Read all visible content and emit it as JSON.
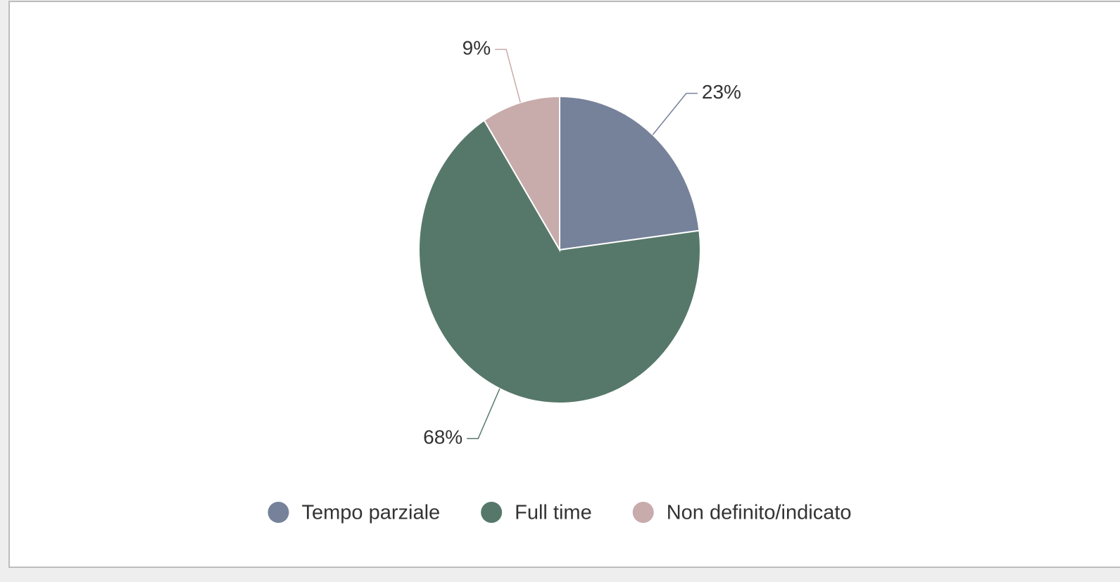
{
  "chart_data": {
    "type": "pie",
    "categories": [
      "Tempo parziale",
      "Full time",
      "Non definito/indicato"
    ],
    "values": [
      23,
      68,
      9
    ],
    "value_labels": [
      "23%",
      "68%",
      "9%"
    ],
    "colors": [
      "#76829a",
      "#56786a",
      "#c8abab"
    ],
    "legend": "bottom"
  }
}
